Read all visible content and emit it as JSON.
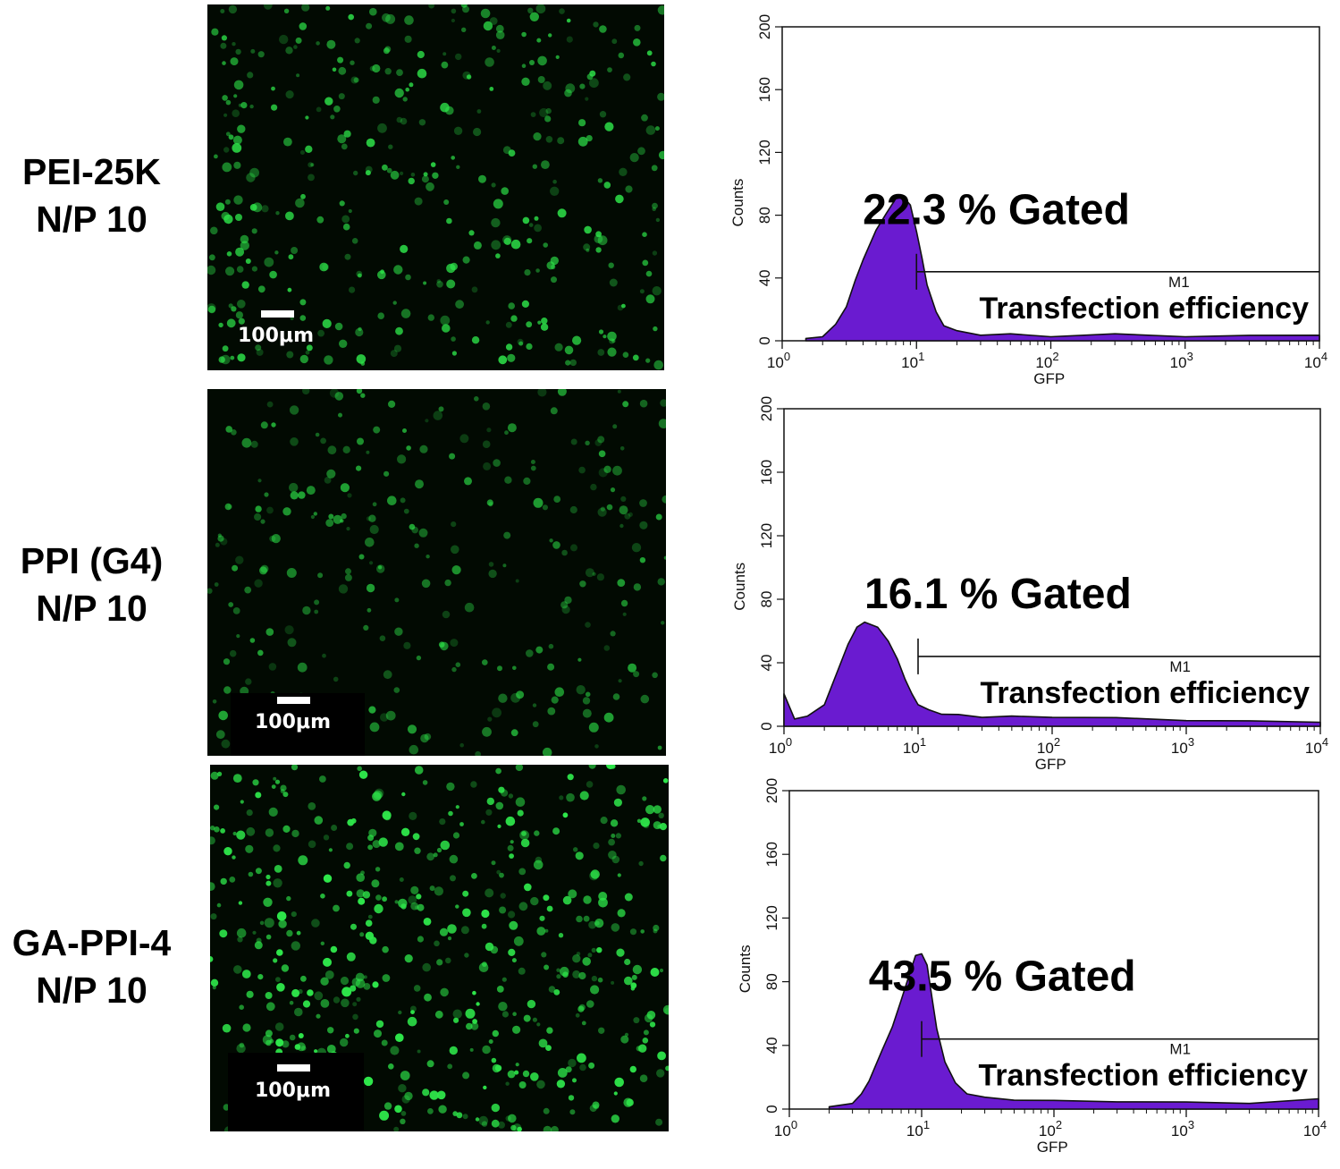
{
  "panels": [
    {
      "label_line1": "PEI-25K",
      "label_line2": "N/P 10",
      "scale_label": "100μm",
      "cell_density": 0.55,
      "cell_brightness": 0.85
    },
    {
      "label_line1": "PPI (G4)",
      "label_line2": "N/P 10",
      "scale_label": "100μm",
      "cell_density": 0.4,
      "cell_brightness": 0.7
    },
    {
      "label_line1": "GA-PPI-4",
      "label_line2": "N/P 10",
      "scale_label": "100μm",
      "cell_density": 0.75,
      "cell_brightness": 1.0
    }
  ],
  "colors": {
    "histogram_fill": "#6a1bd0",
    "histogram_stroke": "#111111",
    "cell_green": "#2ee64a",
    "micro_bg": "#020a02"
  },
  "chart_data": [
    {
      "type": "area",
      "x_scale": "log",
      "xlabel": "GFP",
      "ylabel": "Counts",
      "xlim": [
        1,
        10000
      ],
      "ylim": [
        0,
        200
      ],
      "x_tick_labels": [
        "10^0",
        "10^1",
        "10^2",
        "10^3",
        "10^4"
      ],
      "y_tick_labels": [
        "0",
        "40",
        "80",
        "120",
        "160",
        "200"
      ],
      "gate_label": "M1",
      "gate_start": 10,
      "gate_end": 10000,
      "gate_level": 44,
      "gated_text": "22.3 % Gated",
      "annotation": "Transfection efficiency",
      "x": [
        1.5,
        2,
        2.5,
        3,
        3.5,
        4,
        5,
        6,
        7,
        8,
        9,
        10,
        11,
        12,
        14,
        16,
        20,
        30,
        50,
        100,
        300,
        1000,
        3000,
        10000
      ],
      "y": [
        1,
        3,
        10,
        22,
        38,
        52,
        70,
        82,
        90,
        92,
        86,
        70,
        52,
        36,
        18,
        10,
        6,
        4,
        4,
        3,
        4,
        3,
        3,
        4
      ]
    },
    {
      "type": "area",
      "x_scale": "log",
      "xlabel": "GFP",
      "ylabel": "Counts",
      "xlim": [
        1,
        10000
      ],
      "ylim": [
        0,
        200
      ],
      "x_tick_labels": [
        "10^0",
        "10^1",
        "10^2",
        "10^3",
        "10^4"
      ],
      "y_tick_labels": [
        "0",
        "40",
        "80",
        "120",
        "160",
        "200"
      ],
      "gate_label": "M1",
      "gate_start": 10,
      "gate_end": 10000,
      "gate_level": 44,
      "gated_text": "16.1 % Gated",
      "annotation": "Transfection efficiency",
      "x": [
        1,
        1.2,
        1.5,
        2,
        2.5,
        3,
        3.5,
        4,
        5,
        6,
        7,
        8,
        9,
        10,
        12,
        15,
        20,
        30,
        50,
        100,
        300,
        1000,
        3000,
        10000
      ],
      "y": [
        20,
        5,
        6,
        14,
        34,
        52,
        62,
        66,
        62,
        54,
        42,
        30,
        20,
        14,
        10,
        8,
        7,
        6,
        6,
        6,
        5,
        4,
        3,
        3
      ]
    },
    {
      "type": "area",
      "x_scale": "log",
      "xlabel": "GFP",
      "ylabel": "Counts",
      "xlim": [
        1,
        10000
      ],
      "ylim": [
        0,
        200
      ],
      "x_tick_labels": [
        "10^0",
        "10^1",
        "10^2",
        "10^3",
        "10^4"
      ],
      "y_tick_labels": [
        "0",
        "40",
        "80",
        "120",
        "160",
        "200"
      ],
      "gate_label": "M1",
      "gate_start": 10,
      "gate_end": 10000,
      "gate_level": 44,
      "gated_text": "43.5 % Gated",
      "annotation": "Transfection efficiency",
      "x": [
        2,
        3,
        3.5,
        4,
        5,
        6,
        7,
        8,
        9,
        10,
        11,
        12,
        13,
        15,
        18,
        22,
        30,
        50,
        100,
        300,
        1000,
        3000,
        10000
      ],
      "y": [
        1,
        4,
        9,
        18,
        36,
        52,
        68,
        84,
        96,
        98,
        90,
        70,
        50,
        30,
        16,
        10,
        7,
        6,
        5,
        5,
        4,
        4,
        6
      ]
    }
  ]
}
